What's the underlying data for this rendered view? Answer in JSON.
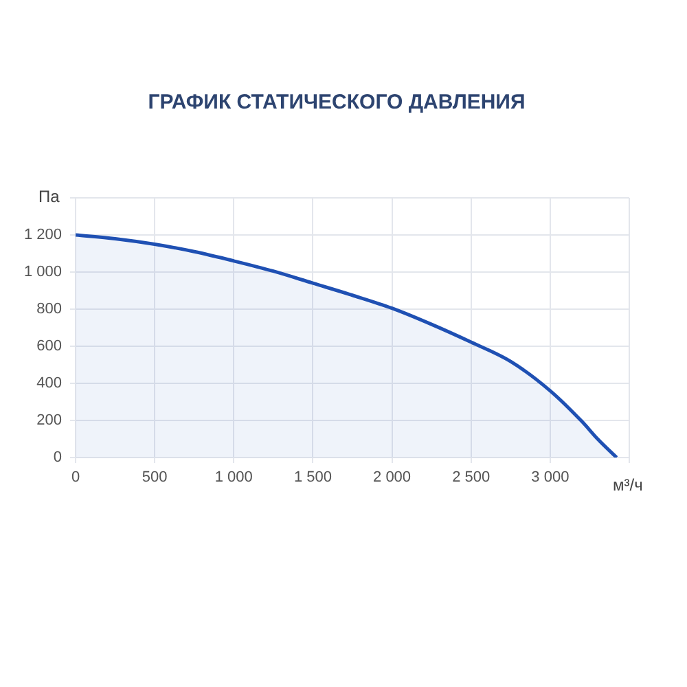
{
  "chart_data": {
    "type": "area",
    "title": "ГРАФИК СТАТИЧЕСКОГО ДАВЛЕНИЯ",
    "xlabel": "м³/ч",
    "ylabel": "Па",
    "x": [
      0,
      250,
      500,
      750,
      1000,
      1250,
      1500,
      1750,
      2000,
      2250,
      2500,
      2750,
      3000,
      3200,
      3300,
      3420
    ],
    "series": [
      {
        "color": "#1f50b3",
        "values": [
          1200,
          1180,
          1150,
          1110,
          1060,
          1005,
          940,
          875,
          805,
          718,
          622,
          518,
          360,
          195,
          100,
          0
        ]
      }
    ],
    "xlim": [
      0,
      3500
    ],
    "ylim": [
      0,
      1400
    ],
    "xticks": [
      0,
      500,
      {
        "value": 1000,
        "label": "1 000"
      },
      {
        "value": 1500,
        "label": "1 500"
      },
      {
        "value": 2000,
        "label": "2 000"
      },
      {
        "value": 2500,
        "label": "2 500"
      },
      {
        "value": 3000,
        "label": "3 000"
      },
      {
        "value": 3500,
        "label": null
      }
    ],
    "yticks": [
      0,
      200,
      400,
      600,
      800,
      {
        "value": 1000,
        "label": "1 000"
      },
      {
        "value": 1200,
        "label": "1 200"
      },
      {
        "value": 1400,
        "label": null
      }
    ],
    "grid": true
  }
}
